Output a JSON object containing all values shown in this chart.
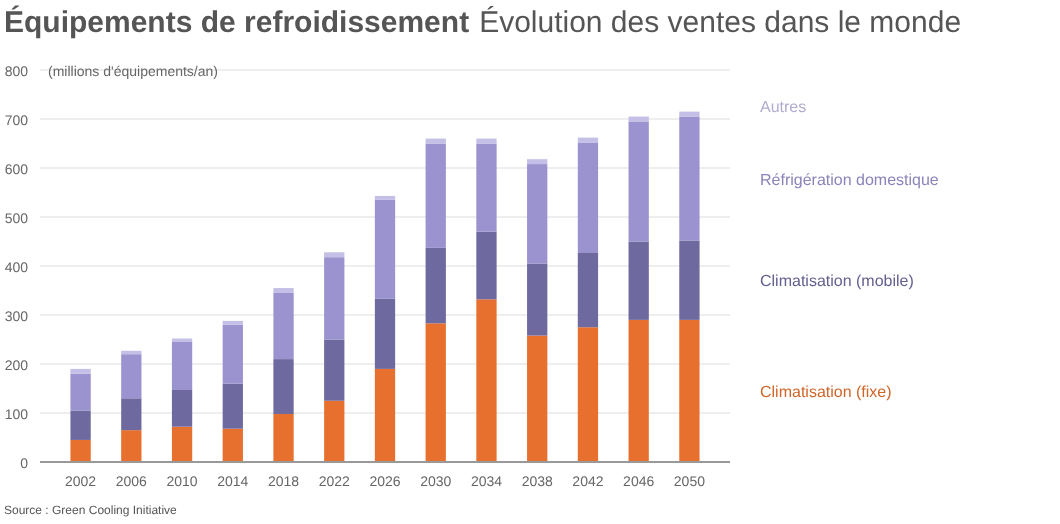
{
  "chart_data": {
    "type": "bar",
    "title": "Équipements de refroidissement",
    "subtitle": "Évolution des ventes dans le monde",
    "ylabel": "(millions d'équipements/an)",
    "annotations": [
      "Source : Green Cooling Initiative"
    ],
    "categories": [
      "2002",
      "2006",
      "2010",
      "2014",
      "2018",
      "2022",
      "2026",
      "2030",
      "2034",
      "2038",
      "2042",
      "2046",
      "2050"
    ],
    "stacked": true,
    "ylim": [
      0,
      800
    ],
    "yticks": [
      0,
      100,
      200,
      300,
      400,
      500,
      600,
      700,
      800
    ],
    "grid": "y",
    "legend": "right",
    "series": [
      {
        "name": "Climatisation (fixe)",
        "color": "#e8702f",
        "values": [
          45,
          65,
          72,
          68,
          98,
          125,
          190,
          283,
          332,
          258,
          275,
          290,
          290
        ]
      },
      {
        "name": "Climatisation (mobile)",
        "color": "#6e6aa0",
        "values": [
          60,
          65,
          75,
          92,
          112,
          125,
          143,
          154,
          138,
          147,
          153,
          160,
          162
        ]
      },
      {
        "name": "Réfrigération domestique",
        "color": "#9b93cf",
        "values": [
          75,
          90,
          98,
          120,
          135,
          168,
          202,
          213,
          180,
          203,
          224,
          245,
          253
        ]
      },
      {
        "name": "Autres",
        "color": "#c4bfe6",
        "values": [
          10,
          7,
          7,
          8,
          10,
          10,
          8,
          10,
          10,
          10,
          10,
          10,
          10
        ]
      }
    ]
  }
}
